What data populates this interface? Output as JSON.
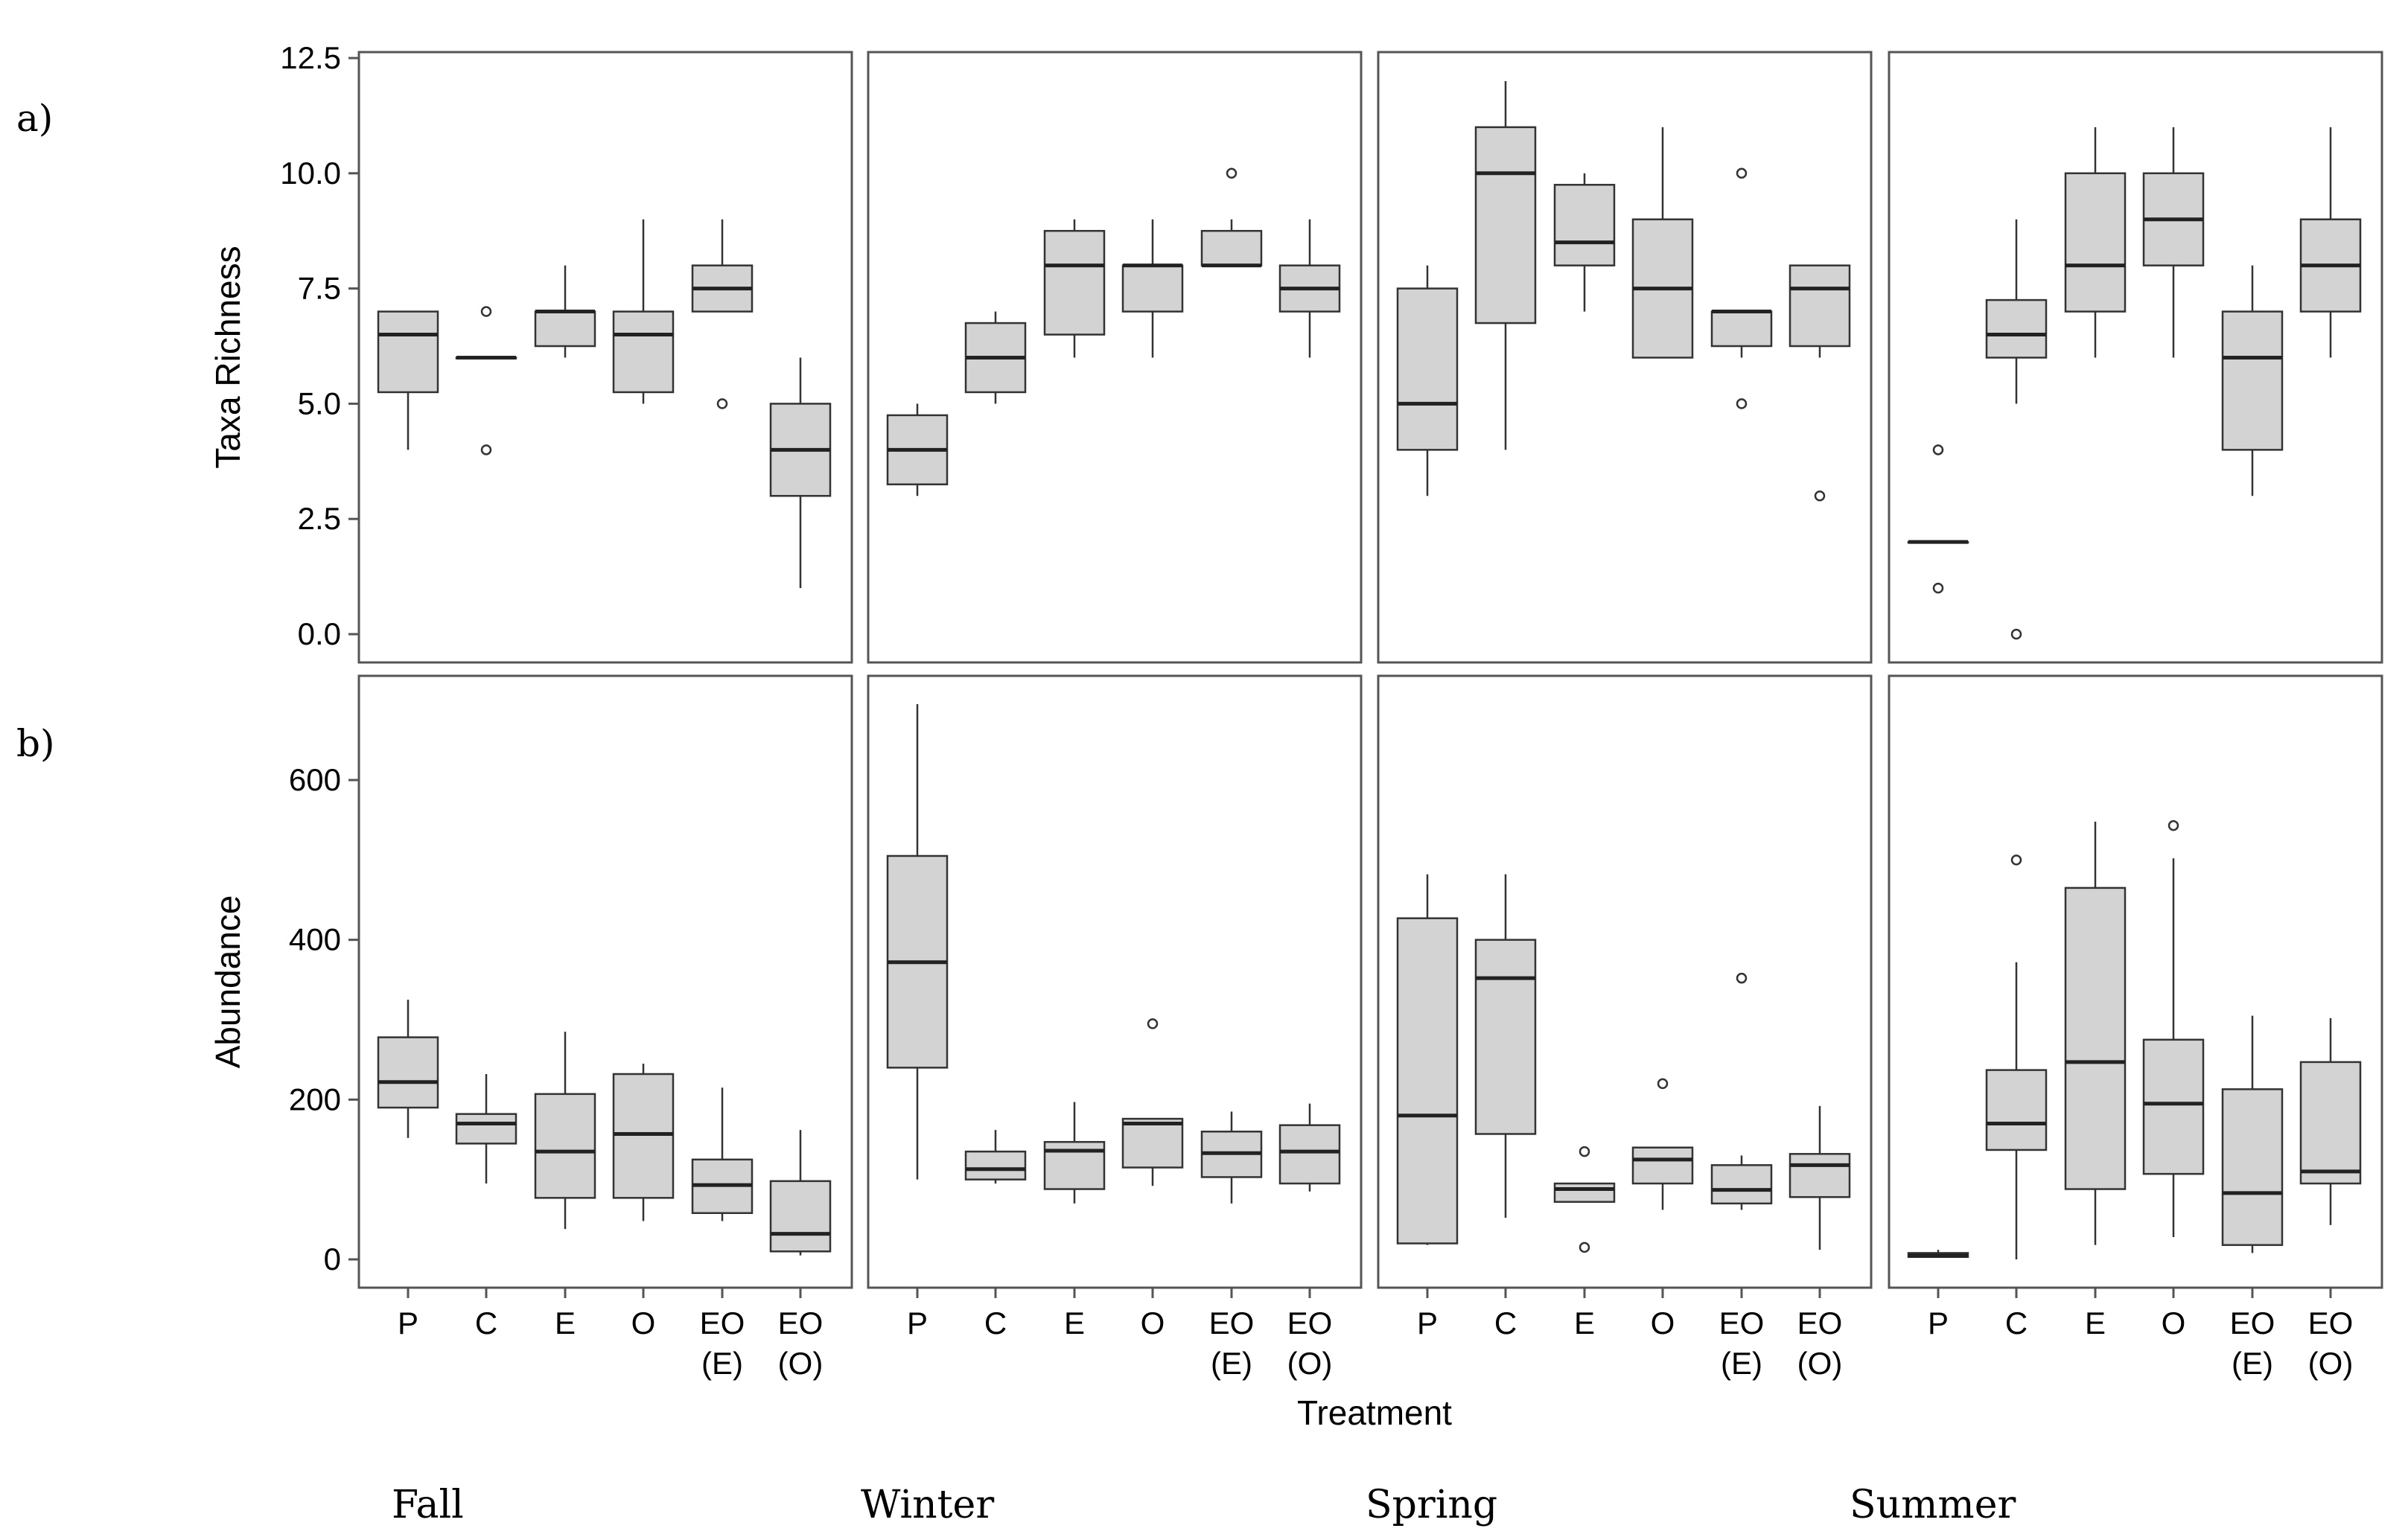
{
  "panel_labels": {
    "a": "a)",
    "b": "b)"
  },
  "seasons": [
    "Fall",
    "Winter",
    "Spring",
    "Summer"
  ],
  "chart_data": {
    "type": "boxplot",
    "xlabel": "Treatment",
    "categories": [
      "P",
      "C",
      "E",
      "O",
      "EO\n(E)",
      "EO\n(O)"
    ],
    "colors": {
      "box_fill": "#d3d3d3",
      "stroke": "#333333",
      "frame": "#555555"
    },
    "rows": [
      {
        "id": "a",
        "ylabel": "Taxa Richness",
        "ylim": [
          0,
          12.5
        ],
        "yticks": [
          0,
          2.5,
          5,
          7.5,
          10,
          12.5
        ],
        "yticklabels": [
          "0.0",
          "2.5",
          "5.0",
          "7.5",
          "10.0",
          "12.5"
        ],
        "facets": [
          {
            "season": "Fall",
            "boxes": [
              {
                "min": 4,
                "q1": 5.25,
                "median": 6.5,
                "q3": 7,
                "max": 7,
                "outliers": []
              },
              {
                "min": 6,
                "q1": 6,
                "median": 6,
                "q3": 6,
                "max": 6,
                "outliers": [
                  4,
                  7
                ]
              },
              {
                "min": 6,
                "q1": 6.25,
                "median": 7,
                "q3": 7,
                "max": 8,
                "outliers": []
              },
              {
                "min": 5,
                "q1": 5.25,
                "median": 6.5,
                "q3": 7,
                "max": 9,
                "outliers": []
              },
              {
                "min": 7,
                "q1": 7,
                "median": 7.5,
                "q3": 8,
                "max": 9,
                "outliers": [
                  5
                ]
              },
              {
                "min": 1,
                "q1": 3,
                "median": 4,
                "q3": 5,
                "max": 6,
                "outliers": []
              }
            ]
          },
          {
            "season": "Winter",
            "boxes": [
              {
                "min": 3,
                "q1": 3.25,
                "median": 4,
                "q3": 4.75,
                "max": 5,
                "outliers": []
              },
              {
                "min": 5,
                "q1": 5.25,
                "median": 6,
                "q3": 6.75,
                "max": 7,
                "outliers": []
              },
              {
                "min": 6,
                "q1": 6.5,
                "median": 8,
                "q3": 8.75,
                "max": 9,
                "outliers": []
              },
              {
                "min": 6,
                "q1": 7,
                "median": 8,
                "q3": 8,
                "max": 9,
                "outliers": []
              },
              {
                "min": 8,
                "q1": 8,
                "median": 8,
                "q3": 8.75,
                "max": 9,
                "outliers": [
                  10
                ]
              },
              {
                "min": 6,
                "q1": 7,
                "median": 7.5,
                "q3": 8,
                "max": 9,
                "outliers": []
              }
            ]
          },
          {
            "season": "Spring",
            "boxes": [
              {
                "min": 3,
                "q1": 4,
                "median": 5,
                "q3": 7.5,
                "max": 8,
                "outliers": []
              },
              {
                "min": 4,
                "q1": 6.75,
                "median": 10,
                "q3": 11,
                "max": 12,
                "outliers": []
              },
              {
                "min": 7,
                "q1": 8,
                "median": 8.5,
                "q3": 9.75,
                "max": 10,
                "outliers": []
              },
              {
                "min": 6,
                "q1": 6,
                "median": 7.5,
                "q3": 9,
                "max": 11,
                "outliers": []
              },
              {
                "min": 6,
                "q1": 6.25,
                "median": 7,
                "q3": 7,
                "max": 7,
                "outliers": [
                  5,
                  10
                ]
              },
              {
                "min": 6,
                "q1": 6.25,
                "median": 7.5,
                "q3": 8,
                "max": 8,
                "outliers": [
                  3
                ]
              }
            ]
          },
          {
            "season": "Summer",
            "boxes": [
              {
                "min": 2,
                "q1": 2,
                "median": 2,
                "q3": 2,
                "max": 2,
                "outliers": [
                  1,
                  4
                ]
              },
              {
                "min": 5,
                "q1": 6,
                "median": 6.5,
                "q3": 7.25,
                "max": 9,
                "outliers": [
                  0
                ]
              },
              {
                "min": 6,
                "q1": 7,
                "median": 8,
                "q3": 10,
                "max": 11,
                "outliers": []
              },
              {
                "min": 6,
                "q1": 8,
                "median": 9,
                "q3": 10,
                "max": 11,
                "outliers": []
              },
              {
                "min": 3,
                "q1": 4,
                "median": 6,
                "q3": 7,
                "max": 8,
                "outliers": []
              },
              {
                "min": 6,
                "q1": 7,
                "median": 8,
                "q3": 9,
                "max": 11,
                "outliers": []
              }
            ]
          }
        ]
      },
      {
        "id": "b",
        "ylabel": "Abundance",
        "ylim": [
          -35,
          700
        ],
        "yticks": [
          0,
          200,
          400,
          600
        ],
        "yticklabels": [
          "0",
          "200",
          "400",
          "600"
        ],
        "facets": [
          {
            "season": "Fall",
            "boxes": [
              {
                "min": 152,
                "q1": 190,
                "median": 222,
                "q3": 278,
                "max": 325,
                "outliers": []
              },
              {
                "min": 95,
                "q1": 145,
                "median": 170,
                "q3": 182,
                "max": 232,
                "outliers": []
              },
              {
                "min": 38,
                "q1": 77,
                "median": 135,
                "q3": 207,
                "max": 285,
                "outliers": []
              },
              {
                "min": 48,
                "q1": 77,
                "median": 157,
                "q3": 232,
                "max": 245,
                "outliers": []
              },
              {
                "min": 48,
                "q1": 58,
                "median": 93,
                "q3": 125,
                "max": 215,
                "outliers": []
              },
              {
                "min": 5,
                "q1": 10,
                "median": 32,
                "q3": 98,
                "max": 162,
                "outliers": []
              }
            ]
          },
          {
            "season": "Winter",
            "boxes": [
              {
                "min": 100,
                "q1": 240,
                "median": 372,
                "q3": 505,
                "max": 695,
                "outliers": []
              },
              {
                "min": 95,
                "q1": 100,
                "median": 113,
                "q3": 135,
                "max": 162,
                "outliers": []
              },
              {
                "min": 70,
                "q1": 88,
                "median": 136,
                "q3": 147,
                "max": 197,
                "outliers": []
              },
              {
                "min": 92,
                "q1": 115,
                "median": 170,
                "q3": 176,
                "max": 176,
                "outliers": [
                  295
                ]
              },
              {
                "min": 70,
                "q1": 103,
                "median": 133,
                "q3": 160,
                "max": 185,
                "outliers": []
              },
              {
                "min": 85,
                "q1": 95,
                "median": 135,
                "q3": 168,
                "max": 195,
                "outliers": []
              }
            ]
          },
          {
            "season": "Spring",
            "boxes": [
              {
                "min": 18,
                "q1": 20,
                "median": 180,
                "q3": 427,
                "max": 482,
                "outliers": []
              },
              {
                "min": 52,
                "q1": 157,
                "median": 352,
                "q3": 400,
                "max": 482,
                "outliers": []
              },
              {
                "min": 72,
                "q1": 72,
                "median": 88,
                "q3": 95,
                "max": 95,
                "outliers": [
                  15,
                  135
                ]
              },
              {
                "min": 62,
                "q1": 95,
                "median": 125,
                "q3": 140,
                "max": 140,
                "outliers": [
                  220
                ]
              },
              {
                "min": 62,
                "q1": 70,
                "median": 87,
                "q3": 118,
                "max": 130,
                "outliers": [
                  352
                ]
              },
              {
                "min": 12,
                "q1": 78,
                "median": 118,
                "q3": 132,
                "max": 192,
                "outliers": []
              }
            ]
          },
          {
            "season": "Summer",
            "boxes": [
              {
                "min": 2,
                "q1": 3,
                "median": 5,
                "q3": 8,
                "max": 12,
                "outliers": []
              },
              {
                "min": 0,
                "q1": 137,
                "median": 170,
                "q3": 237,
                "max": 372,
                "outliers": [
                  500
                ]
              },
              {
                "min": 18,
                "q1": 88,
                "median": 247,
                "q3": 465,
                "max": 548,
                "outliers": []
              },
              {
                "min": 28,
                "q1": 107,
                "median": 195,
                "q3": 275,
                "max": 502,
                "outliers": [
                  543
                ]
              },
              {
                "min": 8,
                "q1": 18,
                "median": 83,
                "q3": 213,
                "max": 305,
                "outliers": []
              },
              {
                "min": 43,
                "q1": 95,
                "median": 110,
                "q3": 247,
                "max": 302,
                "outliers": []
              }
            ]
          }
        ]
      }
    ]
  }
}
